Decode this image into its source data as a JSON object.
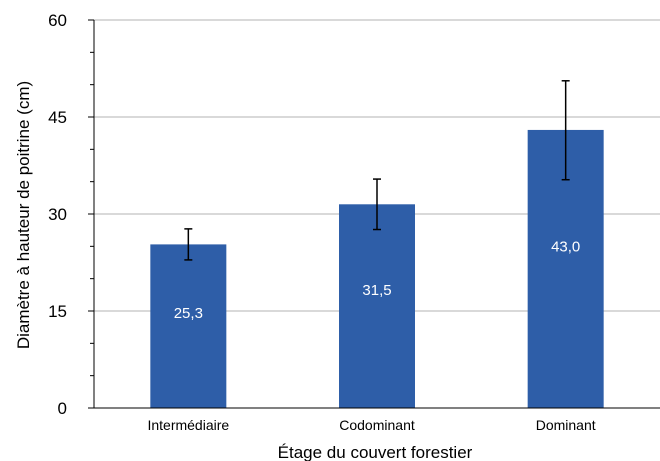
{
  "chart_data": {
    "type": "bar",
    "categories": [
      "Intermédiaire",
      "Codominant",
      "Dominant"
    ],
    "values": [
      25.3,
      31.5,
      43.0
    ],
    "value_labels": [
      "25,3",
      "31,5",
      "43,0"
    ],
    "error_bars": [
      {
        "low": 22.9,
        "high": 27.7
      },
      {
        "low": 27.6,
        "high": 35.4
      },
      {
        "low": 35.3,
        "high": 50.6
      }
    ],
    "xlabel": "Étage du couvert forestier",
    "ylabel": "Diamètre à hauteur de poitrine (cm)",
    "ylim": [
      0,
      60
    ],
    "yticks": [
      0,
      15,
      30,
      45,
      60
    ],
    "ytick_labels": [
      "0",
      "15",
      "30",
      "45",
      "60"
    ],
    "grid": true,
    "bar_color": "#2e5ea8",
    "grid_color": "#b3b3b3"
  }
}
